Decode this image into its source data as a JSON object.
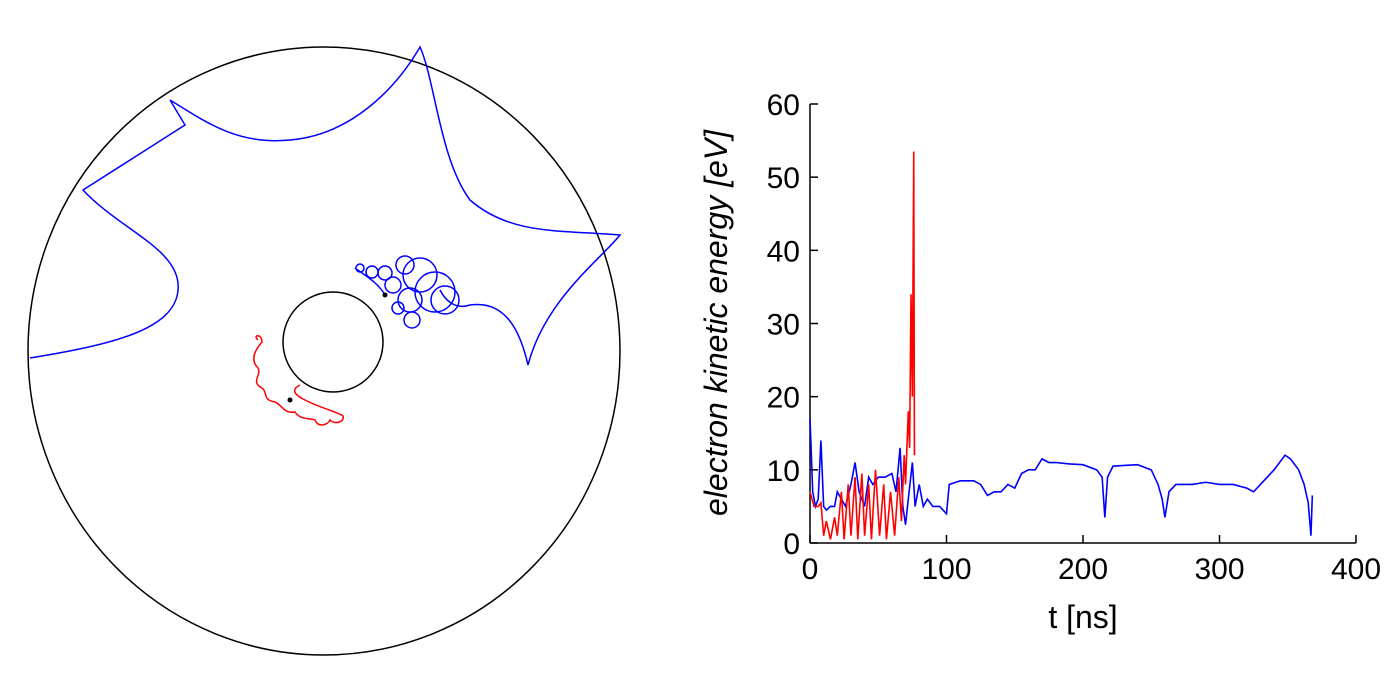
{
  "chart_data": {
    "type": "line",
    "y_label": "electron kinetic energy [eV]",
    "x_label": "t [ns]",
    "xlim": [
      0,
      400
    ],
    "xticks": [
      0,
      100,
      200,
      300,
      400
    ],
    "ylim": [
      0,
      60
    ],
    "yticks": [
      0,
      10,
      20,
      30,
      40,
      50,
      60
    ],
    "series": [
      {
        "color": "#0000ff",
        "x": [
          0,
          2,
          4,
          6,
          8,
          10,
          12,
          15,
          18,
          20,
          23,
          26,
          30,
          33,
          36,
          40,
          43,
          46,
          50,
          55,
          60,
          63,
          66,
          68,
          70,
          72,
          75,
          77,
          80,
          83,
          86,
          90,
          95,
          100,
          102,
          110,
          120,
          125,
          130,
          135,
          140,
          145,
          150,
          155,
          160,
          165,
          170,
          175,
          180,
          190,
          200,
          210,
          214,
          216,
          218,
          222,
          230,
          240,
          250,
          255,
          258,
          260,
          263,
          268,
          280,
          290,
          300,
          310,
          320,
          325,
          330,
          340,
          348,
          352,
          358,
          362,
          365,
          367,
          368
        ],
        "values": [
          17,
          7,
          5,
          6,
          14,
          5,
          4.5,
          5,
          5,
          7,
          6,
          5,
          8,
          11,
          7,
          5,
          9,
          8,
          9,
          9,
          9.5,
          7,
          13,
          5,
          2.5,
          6,
          11,
          5,
          8,
          5,
          6,
          5,
          5,
          4,
          8,
          8.5,
          8.5,
          8,
          6.5,
          7,
          7,
          8,
          7.5,
          9.5,
          10,
          10,
          11.5,
          11,
          11,
          10.8,
          10.7,
          10,
          9,
          3.5,
          9,
          10.5,
          10.6,
          10.7,
          10,
          8,
          6,
          3.5,
          7,
          8,
          8,
          8.3,
          8,
          8,
          7.5,
          7,
          8,
          10,
          12,
          11.5,
          10,
          8,
          5.5,
          1,
          6.5
        ]
      },
      {
        "color": "#ff0000",
        "x": [
          0,
          3,
          6,
          8,
          10,
          12,
          15,
          18,
          20,
          23,
          25,
          28,
          30,
          33,
          35,
          38,
          40,
          43,
          45,
          48,
          51,
          54,
          56,
          59,
          62,
          65,
          67,
          69,
          70,
          72,
          73,
          74,
          75,
          76,
          76.5
        ],
        "values": [
          7,
          5,
          5,
          5.5,
          1,
          3,
          0.5,
          3.5,
          1,
          7,
          0.5,
          8,
          1,
          9,
          0.5,
          9.5,
          1,
          8,
          0.5,
          10,
          1,
          8,
          0.5,
          7,
          1,
          9,
          3,
          12,
          8,
          18,
          13,
          34,
          20,
          53.5,
          12
        ]
      }
    ]
  }
}
